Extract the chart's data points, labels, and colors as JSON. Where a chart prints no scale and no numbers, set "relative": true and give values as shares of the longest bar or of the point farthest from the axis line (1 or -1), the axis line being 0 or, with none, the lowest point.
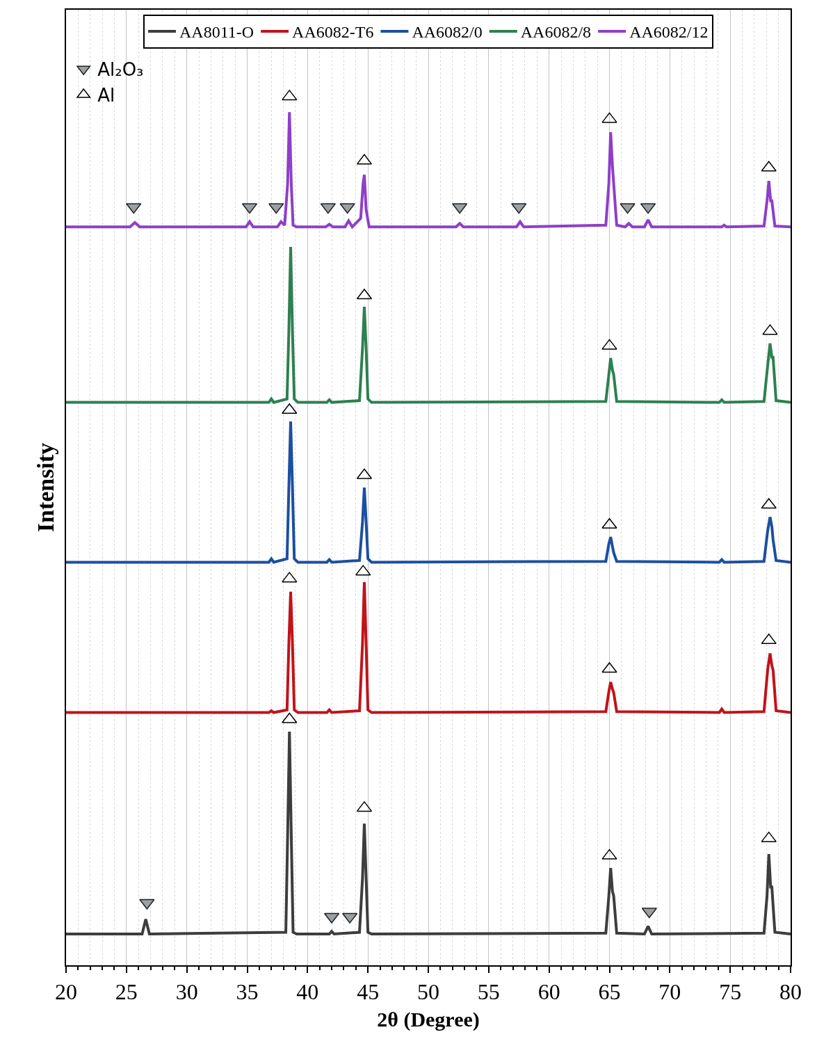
{
  "chart_data": {
    "type": "line",
    "relative": true,
    "xlabel": "2θ (Degree)",
    "ylabel": "Intensity",
    "xlim": [
      20,
      80
    ],
    "xticks": [
      20,
      25,
      30,
      35,
      40,
      45,
      50,
      55,
      60,
      65,
      70,
      75,
      80
    ],
    "grid": "x",
    "legend": "top",
    "series": [
      {
        "name": "AA8011-O",
        "color": "#3d3d3d",
        "x": [
          20,
          26.3,
          26.6,
          26.9,
          38.2,
          38.35,
          38.5,
          38.65,
          38.8,
          39.1,
          41.8,
          42.0,
          42.2,
          44.3,
          44.55,
          44.7,
          44.85,
          45.0,
          45.3,
          64.7,
          64.95,
          65.1,
          65.25,
          65.35,
          65.6,
          67.9,
          68.2,
          68.5,
          77.8,
          78.05,
          78.2,
          78.35,
          78.45,
          78.7,
          80
        ],
        "values": [
          0.036,
          0.036,
          0.053,
          0.036,
          0.038,
          0.15,
          0.269,
          0.15,
          0.038,
          0.036,
          0.036,
          0.039,
          0.036,
          0.038,
          0.1,
          0.163,
          0.1,
          0.038,
          0.036,
          0.037,
          0.08,
          0.112,
          0.085,
          0.08,
          0.037,
          0.036,
          0.045,
          0.036,
          0.037,
          0.08,
          0.128,
          0.09,
          0.09,
          0.038,
          0.036
        ]
      },
      {
        "name": "AA6082-T6",
        "color": "#c0141a",
        "x": [
          20,
          36.8,
          37.0,
          37.2,
          38.3,
          38.45,
          38.6,
          38.75,
          38.9,
          39.2,
          41.6,
          41.8,
          42.0,
          44.3,
          44.55,
          44.7,
          44.85,
          45.0,
          45.3,
          64.7,
          64.95,
          65.1,
          65.25,
          65.35,
          65.6,
          74.1,
          74.3,
          74.5,
          77.8,
          78.1,
          78.3,
          78.45,
          78.55,
          78.8,
          80
        ],
        "values": [
          0.291,
          0.291,
          0.293,
          0.291,
          0.294,
          0.37,
          0.43,
          0.37,
          0.294,
          0.291,
          0.291,
          0.294,
          0.291,
          0.293,
          0.37,
          0.441,
          0.37,
          0.294,
          0.291,
          0.292,
          0.315,
          0.326,
          0.318,
          0.314,
          0.292,
          0.291,
          0.295,
          0.291,
          0.292,
          0.34,
          0.359,
          0.345,
          0.34,
          0.293,
          0.291
        ]
      },
      {
        "name": "AA6082/0",
        "color": "#1c4fa0",
        "x": [
          20,
          36.8,
          37.0,
          37.2,
          38.3,
          38.45,
          38.6,
          38.75,
          38.9,
          39.2,
          41.6,
          41.8,
          42.0,
          44.3,
          44.55,
          44.7,
          44.85,
          45.0,
          45.3,
          64.7,
          64.95,
          65.1,
          65.25,
          65.35,
          65.6,
          74.1,
          74.3,
          74.5,
          77.8,
          78.1,
          78.3,
          78.45,
          78.55,
          78.8,
          80
        ],
        "values": [
          0.464,
          0.464,
          0.468,
          0.464,
          0.468,
          0.55,
          0.626,
          0.55,
          0.468,
          0.464,
          0.464,
          0.467,
          0.464,
          0.466,
          0.51,
          0.55,
          0.51,
          0.468,
          0.464,
          0.465,
          0.485,
          0.493,
          0.482,
          0.475,
          0.465,
          0.464,
          0.467,
          0.464,
          0.465,
          0.5,
          0.516,
          0.505,
          0.49,
          0.466,
          0.464
        ]
      },
      {
        "name": "AA6082/8",
        "color": "#2e8050",
        "x": [
          20,
          36.8,
          37.0,
          37.2,
          38.3,
          38.45,
          38.6,
          38.75,
          38.9,
          39.2,
          41.6,
          41.8,
          42.0,
          44.3,
          44.55,
          44.7,
          44.85,
          45.0,
          45.3,
          64.7,
          64.95,
          65.1,
          65.25,
          65.35,
          65.6,
          74.1,
          74.3,
          74.5,
          77.8,
          78.1,
          78.3,
          78.45,
          78.55,
          78.8,
          80
        ],
        "values": [
          0.648,
          0.648,
          0.652,
          0.648,
          0.652,
          0.73,
          0.827,
          0.73,
          0.652,
          0.648,
          0.648,
          0.651,
          0.648,
          0.65,
          0.71,
          0.758,
          0.71,
          0.652,
          0.648,
          0.649,
          0.68,
          0.699,
          0.685,
          0.68,
          0.649,
          0.648,
          0.651,
          0.648,
          0.649,
          0.69,
          0.716,
          0.7,
          0.7,
          0.65,
          0.648
        ]
      },
      {
        "name": "AA6082/12",
        "color": "#8e3fc9",
        "x": [
          20,
          25.3,
          25.7,
          26.1,
          34.9,
          35.2,
          35.5,
          37.5,
          37.8,
          38.1,
          38.35,
          38.5,
          38.65,
          38.8,
          39.1,
          41.5,
          41.8,
          42.1,
          43.1,
          43.4,
          43.7,
          44.4,
          44.6,
          44.7,
          44.85,
          45.1,
          52.3,
          52.6,
          52.9,
          57.3,
          57.6,
          57.9,
          64.7,
          64.95,
          65.1,
          65.25,
          65.35,
          65.6,
          66.3,
          66.6,
          66.9,
          67.9,
          68.2,
          68.5,
          74.3,
          74.5,
          74.7,
          77.8,
          78.05,
          78.2,
          78.35,
          78.45,
          78.7,
          80
        ],
        "values": [
          0.85,
          0.85,
          0.855,
          0.85,
          0.85,
          0.856,
          0.85,
          0.85,
          0.856,
          0.852,
          0.9,
          0.982,
          0.9,
          0.852,
          0.85,
          0.85,
          0.853,
          0.85,
          0.85,
          0.857,
          0.85,
          0.86,
          0.9,
          0.91,
          0.87,
          0.85,
          0.85,
          0.854,
          0.85,
          0.85,
          0.856,
          0.85,
          0.852,
          0.9,
          0.959,
          0.92,
          0.9,
          0.852,
          0.85,
          0.854,
          0.85,
          0.85,
          0.858,
          0.85,
          0.85,
          0.852,
          0.85,
          0.851,
          0.88,
          0.903,
          0.88,
          0.88,
          0.851,
          0.85
        ]
      },
      {
        "name": "Al₂O₃",
        "type": "scatter",
        "marker": "triangle-down",
        "color": "#9aa0a3",
        "x": [
          25.6,
          35.2,
          37.4,
          41.7,
          43.3,
          52.6,
          57.5,
          66.5,
          68.2,
          26.7,
          42.0,
          43.5,
          68.3
        ],
        "values": [
          0.873,
          0.873,
          0.873,
          0.873,
          0.873,
          0.873,
          0.873,
          0.873,
          0.873,
          0.072,
          0.056,
          0.056,
          0.062
        ]
      },
      {
        "name": "Al",
        "type": "scatter",
        "marker": "triangle",
        "color": "#000000",
        "x": [
          38.5,
          44.7,
          65.0,
          78.2,
          44.7,
          65.0,
          78.3,
          38.5,
          44.7,
          65.0,
          78.2,
          38.5,
          44.6,
          65.0,
          78.2,
          38.5,
          44.7,
          65.0,
          78.2
        ],
        "values": [
          1.0,
          0.926,
          0.974,
          0.918,
          0.771,
          0.713,
          0.73,
          0.639,
          0.564,
          0.507,
          0.53,
          0.445,
          0.453,
          0.341,
          0.374,
          0.283,
          0.181,
          0.126,
          0.146
        ]
      }
    ]
  }
}
